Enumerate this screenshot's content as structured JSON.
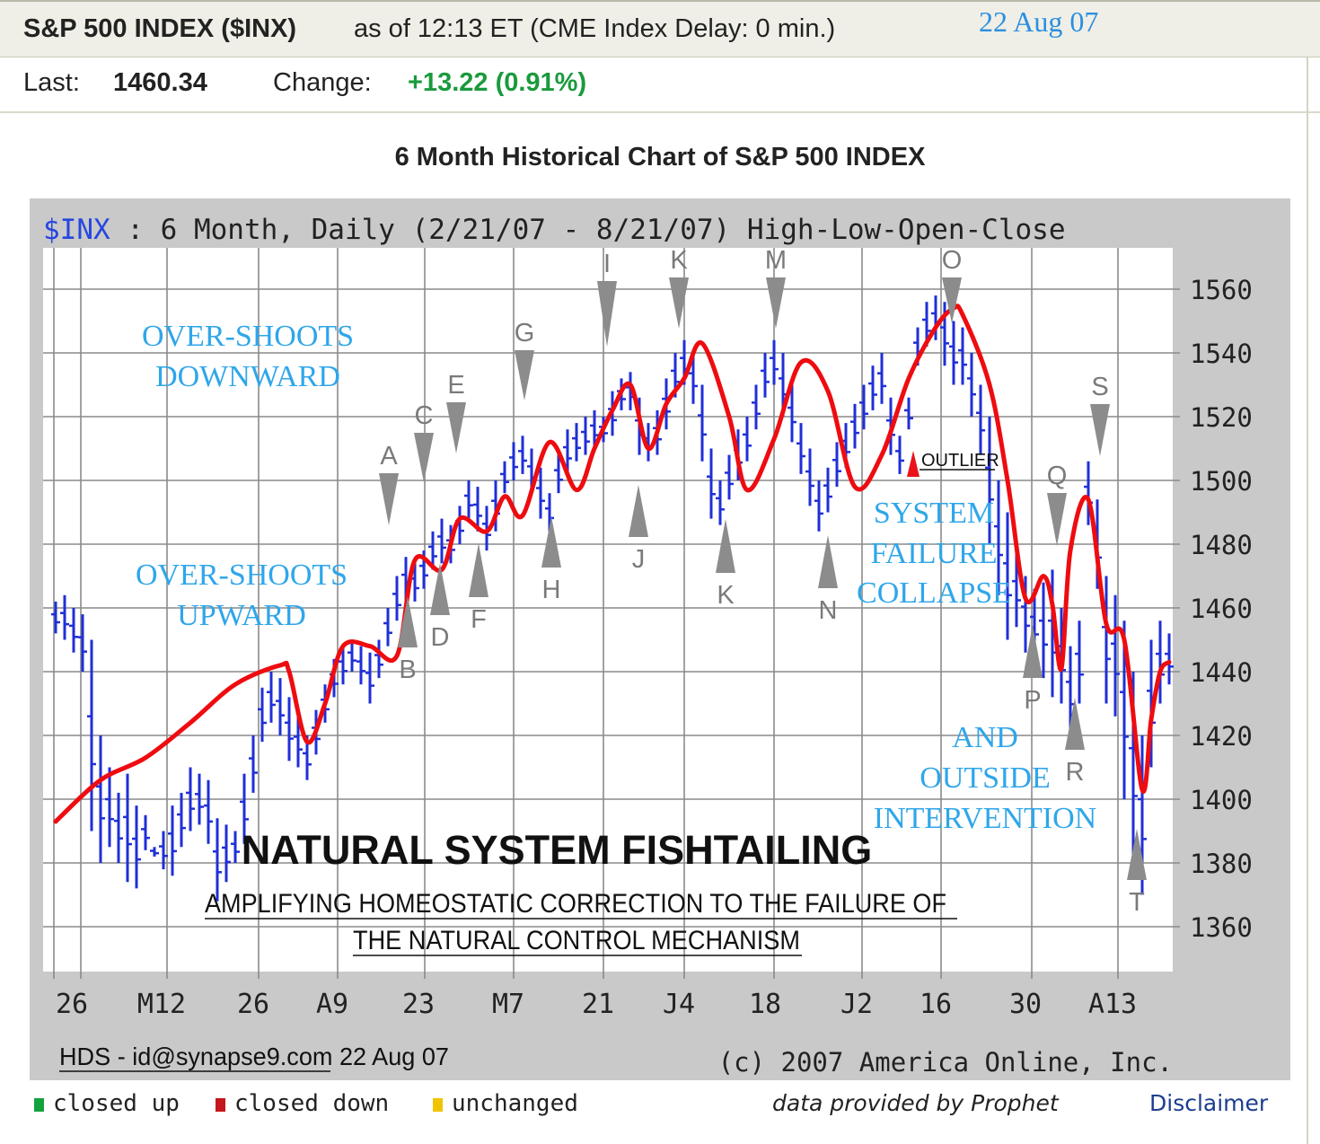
{
  "header": {
    "symbol": "S&P 500 INDEX ($INX)",
    "as_of": "as of 12:13 ET (CME Index Delay: 0 min.)",
    "date_stamp": "22 Aug 07"
  },
  "quote": {
    "last_label": "Last:",
    "last_value": "1460.34",
    "change_label": "Change:",
    "change_value": "+13.22 (0.91%)"
  },
  "chart_title": "6 Month Historical Chart of S&P 500 INDEX",
  "chart_subtitle": {
    "ticker": "$INX",
    "desc": " : 6 Month, Daily (2/21/07 - 8/21/07) High-Low-Open-Close"
  },
  "chart_data": {
    "type": "line",
    "title": "6 Month Historical Chart of S&P 500 INDEX",
    "ylim": [
      1350,
      1575
    ],
    "y_ticks": [
      1360,
      1380,
      1400,
      1420,
      1440,
      1460,
      1480,
      1500,
      1520,
      1540,
      1560
    ],
    "x_tick_labels": [
      "26",
      "M12",
      "26",
      "A9",
      "23",
      "M7",
      "21",
      "J4",
      "18",
      "J2",
      "16",
      "30",
      "A13"
    ],
    "grid": true,
    "ohlc_bars": {
      "x": [
        0,
        1,
        2,
        3,
        4,
        5,
        6,
        7,
        8,
        9,
        10,
        11,
        12,
        13,
        14,
        15,
        16,
        17,
        18,
        19,
        20,
        21,
        22,
        23,
        24,
        25,
        26,
        27,
        28,
        29,
        30,
        31,
        32,
        33,
        34,
        35,
        36,
        37,
        38,
        39,
        40,
        41,
        42,
        43,
        44,
        45,
        46,
        47,
        48,
        49,
        50,
        51,
        52,
        53,
        54,
        55,
        56,
        57,
        58,
        59,
        60,
        61,
        62,
        63,
        64,
        65,
        66,
        67,
        68,
        69,
        70,
        71,
        72,
        73,
        74,
        75,
        76,
        77,
        78,
        79,
        80,
        81,
        82,
        83,
        84,
        85,
        86,
        87,
        88,
        89,
        90,
        91,
        92,
        93,
        94,
        95,
        96,
        97,
        98,
        99,
        100,
        101,
        102,
        103,
        104,
        105,
        106,
        107,
        108,
        109,
        110,
        111,
        112,
        113,
        114,
        115,
        116,
        117,
        118,
        119,
        120,
        121,
        122,
        123,
        124
      ],
      "high": [
        1462,
        1464,
        1460,
        1458,
        1450,
        1420,
        1410,
        1402,
        1408,
        1398,
        1395,
        1385,
        1390,
        1398,
        1402,
        1410,
        1408,
        1406,
        1394,
        1392,
        1390,
        1408,
        1420,
        1435,
        1440,
        1438,
        1432,
        1426,
        1420,
        1428,
        1436,
        1444,
        1448,
        1450,
        1448,
        1446,
        1450,
        1460,
        1470,
        1476,
        1474,
        1478,
        1484,
        1488,
        1486,
        1492,
        1500,
        1498,
        1492,
        1500,
        1506,
        1512,
        1514,
        1510,
        1504,
        1496,
        1508,
        1516,
        1518,
        1520,
        1522,
        1520,
        1528,
        1532,
        1534,
        1526,
        1518,
        1522,
        1532,
        1540,
        1544,
        1540,
        1530,
        1510,
        1500,
        1508,
        1516,
        1520,
        1530,
        1540,
        1544,
        1540,
        1530,
        1518,
        1510,
        1500,
        1504,
        1512,
        1518,
        1524,
        1530,
        1536,
        1540,
        1526,
        1514,
        1526,
        1548,
        1556,
        1558,
        1556,
        1550,
        1548,
        1540,
        1530,
        1520,
        1500,
        1490,
        1478,
        1470,
        1466,
        1468,
        1472,
        1460,
        1448,
        1456,
        1506,
        1494,
        1470,
        1464,
        1456,
        1440,
        1420,
        1450,
        1456,
        1452
      ],
      "low": [
        1452,
        1450,
        1446,
        1440,
        1390,
        1380,
        1385,
        1380,
        1374,
        1372,
        1384,
        1382,
        1378,
        1376,
        1385,
        1390,
        1392,
        1386,
        1368,
        1374,
        1380,
        1386,
        1402,
        1418,
        1424,
        1420,
        1412,
        1410,
        1406,
        1414,
        1424,
        1432,
        1436,
        1440,
        1436,
        1430,
        1438,
        1448,
        1456,
        1462,
        1462,
        1466,
        1472,
        1474,
        1474,
        1480,
        1488,
        1484,
        1478,
        1484,
        1496,
        1500,
        1502,
        1496,
        1488,
        1484,
        1496,
        1502,
        1506,
        1508,
        1510,
        1512,
        1514,
        1522,
        1522,
        1508,
        1506,
        1508,
        1516,
        1526,
        1530,
        1524,
        1506,
        1488,
        1486,
        1494,
        1500,
        1506,
        1516,
        1526,
        1530,
        1520,
        1512,
        1502,
        1492,
        1484,
        1490,
        1498,
        1504,
        1510,
        1516,
        1522,
        1524,
        1508,
        1502,
        1516,
        1536,
        1542,
        1544,
        1536,
        1530,
        1530,
        1520,
        1508,
        1480,
        1464,
        1450,
        1454,
        1446,
        1444,
        1438,
        1432,
        1430,
        1420,
        1430,
        1486,
        1466,
        1430,
        1426,
        1400,
        1380,
        1370,
        1410,
        1430,
        1436
      ]
    },
    "trend_line": {
      "x": [
        0,
        5,
        10,
        15,
        20,
        25,
        26,
        28,
        30,
        32,
        35,
        38,
        40,
        43,
        45,
        48,
        50,
        52,
        55,
        58,
        60,
        62,
        64,
        66,
        68,
        70,
        72,
        75,
        77,
        80,
        83,
        86,
        89,
        92,
        95,
        98,
        100,
        101,
        104,
        106,
        108,
        110,
        111,
        112,
        113,
        115,
        117,
        119,
        121,
        122,
        123,
        124
      ],
      "y": [
        1393,
        1406,
        1413,
        1424,
        1436,
        1442,
        1440,
        1418,
        1430,
        1448,
        1448,
        1445,
        1475,
        1472,
        1488,
        1484,
        1495,
        1489,
        1512,
        1497,
        1510,
        1522,
        1530,
        1510,
        1524,
        1532,
        1543,
        1520,
        1497,
        1513,
        1537,
        1528,
        1498,
        1508,
        1532,
        1548,
        1554,
        1552,
        1530,
        1500,
        1463,
        1470,
        1461,
        1441,
        1478,
        1494,
        1455,
        1450,
        1403,
        1425,
        1440,
        1443
      ]
    },
    "trend_line_x_note": "trading-day index from 2/21/07",
    "annotations": {
      "markers_down": [
        "A",
        "C",
        "E",
        "G",
        "I",
        "K",
        "M",
        "O",
        "Q",
        "S"
      ],
      "markers_up": [
        "B",
        "D",
        "F",
        "H",
        "J",
        "K",
        "N",
        "P",
        "R",
        "T"
      ],
      "outlier_label": "OUTLIER",
      "texts": [
        "OVER-SHOOTS DOWNWARD",
        "OVER-SHOOTS UPWARD",
        "SYSTEM FAILURE COLLAPSE",
        "AND OUTSIDE INTERVENTION"
      ],
      "headline": "NATURAL SYSTEM FISHTAILING",
      "subline_1": "AMPLIFYING HOMEOSTATIC CORRECTION TO THE FAILURE OF",
      "subline_2": "THE NATURAL CONTROL MECHANISM"
    },
    "credit": "HDS - id@synapse9.com 22 Aug 07",
    "copyright": "(c) 2007 America Online, Inc."
  },
  "colors": {
    "bar": "#1f2fd8",
    "trend": "#ee0c10",
    "annotation_text": "#2fa6ea",
    "marker": "#8c8c8c",
    "outlier_marker": "#e8141a",
    "change_green": "#1a9a3c",
    "ticker_blue": "#2746e0"
  },
  "legend": {
    "items": [
      {
        "label": "closed up",
        "color": "#14a23c"
      },
      {
        "label": "closed down",
        "color": "#c4161c"
      },
      {
        "label": "unchanged",
        "color": "#f0c400"
      }
    ],
    "provider": "data provided by Prophet",
    "disclaimer": "Disclaimer"
  }
}
